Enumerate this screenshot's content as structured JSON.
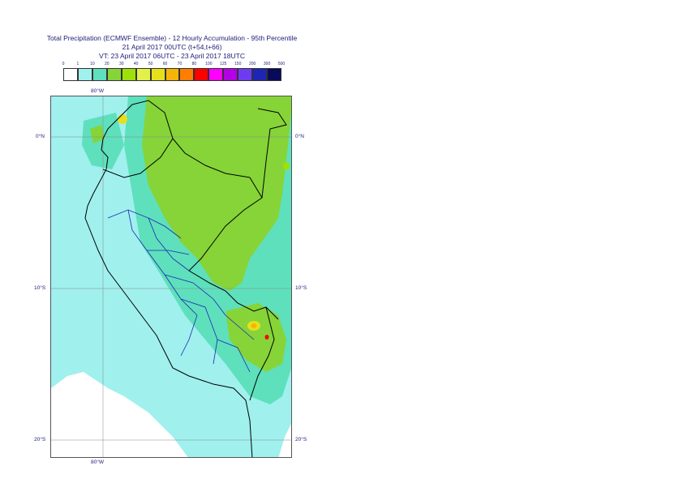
{
  "title": {
    "line1": "Total Precipitation (ECMWF Ensemble) - 12 Hourly Accumulation - 95th Percentile",
    "line2": "21 April 2017 00UTC (t+54,t+66)",
    "line3": "VT: 23 April 2017 06UTC - 23 April 2017 18UTC"
  },
  "legend": {
    "ticks": [
      "0",
      "1",
      "10",
      "20",
      "30",
      "40",
      "50",
      "60",
      "70",
      "80",
      "100",
      "125",
      "150",
      "200",
      "300",
      "500"
    ],
    "colors": [
      "#ffffff",
      "#a0f0ee",
      "#5ee0bc",
      "#86d438",
      "#9ee00a",
      "#e2f04a",
      "#e6e01c",
      "#f4b40a",
      "#ff7d00",
      "#ff0000",
      "#ff00ff",
      "#b400e6",
      "#6e3cf0",
      "#1e24b4",
      "#0a0a5a"
    ]
  },
  "map": {
    "lon_labels": [
      "80°W",
      "80°W"
    ],
    "lat_labels": {
      "left": [
        "0°N",
        "10°S",
        "20°S"
      ],
      "right": [
        "0°N",
        "10°S",
        "20°S"
      ]
    },
    "fill_colors": {
      "ocean": "#ffffff",
      "light_cyan": "#a0f0ee",
      "teal": "#5ee0bc",
      "green": "#86d438",
      "lime": "#9ee00a",
      "yellow": "#e6e01c",
      "orange": "#f4b40a",
      "red": "#ff0000",
      "country_border": "#000000",
      "region_border": "#1e24b4",
      "grid": "#888888"
    }
  }
}
